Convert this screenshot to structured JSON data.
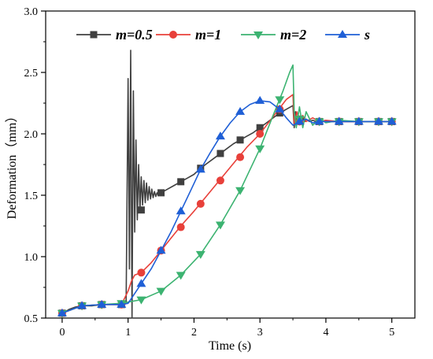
{
  "chart_data": {
    "type": "line",
    "xlabel": "Time (s)",
    "ylabel": "Deformation（mm）",
    "xlim": [
      -0.25,
      5.35
    ],
    "ylim": [
      0.5,
      3.0
    ],
    "x_ticks": [
      0,
      1,
      2,
      3,
      4,
      5
    ],
    "x_tick_labels": [
      "0",
      "1",
      "2",
      "3",
      "4",
      "5"
    ],
    "y_ticks": [
      0.5,
      1.0,
      1.5,
      2.0,
      2.5,
      3.0
    ],
    "y_tick_labels": [
      "0.5",
      "1.0",
      "1.5",
      "2.0",
      "2.5",
      "3.0"
    ],
    "legend_position": "top",
    "series": [
      {
        "name": "m=0.5",
        "color": "#404040",
        "marker": "square",
        "x": [
          0,
          0.1,
          0.2,
          0.3,
          0.45,
          0.6,
          0.75,
          0.9,
          0.97,
          1.0,
          1.02,
          1.04,
          1.06,
          1.08,
          1.1,
          1.12,
          1.14,
          1.16,
          1.18,
          1.2,
          1.22,
          1.24,
          1.26,
          1.28,
          1.3,
          1.32,
          1.34,
          1.36,
          1.38,
          1.4,
          1.42,
          1.44,
          1.46,
          1.48,
          1.5,
          1.6,
          1.7,
          1.8,
          1.9,
          2.0,
          2.1,
          2.2,
          2.3,
          2.4,
          2.5,
          2.6,
          2.7,
          2.8,
          2.9,
          3.0,
          3.1,
          3.2,
          3.3,
          3.4,
          3.5,
          3.52,
          3.54,
          3.56,
          3.58,
          3.6,
          3.62,
          3.64,
          3.66,
          3.68,
          3.7,
          3.75,
          3.8,
          3.85,
          3.9,
          4.0,
          4.2,
          4.5,
          4.8,
          5.0
        ],
        "y": [
          0.53,
          0.57,
          0.59,
          0.6,
          0.6,
          0.61,
          0.61,
          0.61,
          0.62,
          2.45,
          0.9,
          2.68,
          0.5,
          2.35,
          1.2,
          1.95,
          1.3,
          1.75,
          1.38,
          1.65,
          1.42,
          1.62,
          1.44,
          1.6,
          1.46,
          1.57,
          1.47,
          1.55,
          1.48,
          1.53,
          1.49,
          1.52,
          1.5,
          1.51,
          1.52,
          1.55,
          1.58,
          1.61,
          1.64,
          1.67,
          1.72,
          1.76,
          1.8,
          1.84,
          1.88,
          1.92,
          1.95,
          1.98,
          2.01,
          2.05,
          2.09,
          2.13,
          2.17,
          2.2,
          2.23,
          2.05,
          2.18,
          2.08,
          2.15,
          2.09,
          2.14,
          2.1,
          2.13,
          2.1,
          2.12,
          2.1,
          2.11,
          2.1,
          2.11,
          2.1,
          2.1,
          2.1,
          2.1,
          2.1
        ],
        "marker_x": [
          0,
          0.3,
          0.6,
          0.9,
          1.2,
          1.5,
          1.8,
          2.1,
          2.4,
          2.7,
          3.0,
          3.3,
          3.6,
          3.9,
          4.2,
          4.5,
          4.8,
          5.0
        ],
        "marker_y": [
          0.54,
          0.6,
          0.61,
          0.61,
          1.38,
          1.52,
          1.61,
          1.72,
          1.84,
          1.95,
          2.05,
          2.17,
          2.12,
          2.1,
          2.1,
          2.1,
          2.1,
          2.1
        ]
      },
      {
        "name": "m=1",
        "color": "#e8403a",
        "marker": "circle",
        "x": [
          0,
          0.3,
          0.6,
          0.9,
          1.0,
          1.05,
          1.1,
          1.2,
          1.35,
          1.5,
          1.65,
          1.8,
          2.0,
          2.2,
          2.4,
          2.6,
          2.8,
          3.0,
          3.2,
          3.4,
          3.5,
          3.52,
          3.56,
          3.6,
          3.65,
          3.7,
          3.8,
          3.9,
          4.0,
          4.2,
          4.5,
          4.8,
          5.0
        ],
        "y": [
          0.54,
          0.6,
          0.61,
          0.61,
          0.72,
          0.8,
          0.85,
          0.87,
          0.95,
          1.05,
          1.15,
          1.25,
          1.37,
          1.5,
          1.63,
          1.76,
          1.89,
          2.0,
          2.14,
          2.28,
          2.32,
          2.08,
          2.18,
          2.1,
          2.15,
          2.1,
          2.13,
          2.1,
          2.11,
          2.1,
          2.1,
          2.1,
          2.1
        ],
        "marker_x": [
          0,
          0.3,
          0.6,
          0.9,
          1.2,
          1.5,
          1.8,
          2.1,
          2.4,
          2.7,
          3.0,
          3.3,
          3.6,
          3.9,
          4.2,
          4.5,
          4.8,
          5.0
        ],
        "marker_y": [
          0.54,
          0.6,
          0.61,
          0.61,
          0.87,
          1.05,
          1.24,
          1.43,
          1.62,
          1.81,
          2.0,
          2.2,
          2.1,
          2.1,
          2.1,
          2.1,
          2.1,
          2.1
        ]
      },
      {
        "name": "m=2",
        "color": "#3cb371",
        "marker": "triangle-down",
        "x": [
          0,
          0.3,
          0.6,
          0.9,
          1.0,
          1.2,
          1.5,
          1.8,
          2.1,
          2.4,
          2.7,
          3.0,
          3.2,
          3.35,
          3.45,
          3.5,
          3.52,
          3.55,
          3.6,
          3.65,
          3.7,
          3.8,
          3.9,
          4.0,
          4.2,
          4.5,
          4.8,
          5.0
        ],
        "y": [
          0.54,
          0.6,
          0.61,
          0.62,
          0.63,
          0.65,
          0.72,
          0.85,
          1.02,
          1.26,
          1.54,
          1.88,
          2.15,
          2.35,
          2.5,
          2.56,
          2.18,
          2.05,
          2.22,
          2.05,
          2.18,
          2.07,
          2.13,
          2.09,
          2.11,
          2.1,
          2.1,
          2.1
        ],
        "marker_x": [
          0,
          0.3,
          0.6,
          0.9,
          1.2,
          1.5,
          1.8,
          2.1,
          2.4,
          2.7,
          3.0,
          3.3,
          3.6,
          3.9,
          4.2,
          4.5,
          4.8,
          5.0
        ],
        "marker_y": [
          0.54,
          0.6,
          0.61,
          0.62,
          0.65,
          0.72,
          0.85,
          1.02,
          1.26,
          1.54,
          1.88,
          2.28,
          2.12,
          2.1,
          2.1,
          2.1,
          2.1,
          2.1
        ]
      },
      {
        "name": "s",
        "color": "#1f5fd6",
        "marker": "triangle-up",
        "x": [
          0,
          0.3,
          0.6,
          0.9,
          1.0,
          1.1,
          1.2,
          1.35,
          1.5,
          1.65,
          1.8,
          1.95,
          2.1,
          2.25,
          2.4,
          2.55,
          2.7,
          2.85,
          3.0,
          3.15,
          3.3,
          3.4,
          3.5,
          3.6,
          3.7,
          3.8,
          3.9,
          4.0,
          4.2,
          4.5,
          4.8,
          5.0
        ],
        "y": [
          0.54,
          0.6,
          0.61,
          0.61,
          0.62,
          0.7,
          0.78,
          0.9,
          1.05,
          1.2,
          1.37,
          1.54,
          1.71,
          1.85,
          1.98,
          2.09,
          2.18,
          2.24,
          2.27,
          2.26,
          2.2,
          2.13,
          2.07,
          2.1,
          2.12,
          2.09,
          2.1,
          2.1,
          2.1,
          2.1,
          2.1,
          2.1
        ],
        "marker_x": [
          0,
          0.3,
          0.6,
          0.9,
          1.2,
          1.5,
          1.8,
          2.1,
          2.4,
          2.7,
          3.0,
          3.3,
          3.6,
          3.9,
          4.2,
          4.5,
          4.8,
          5.0
        ],
        "marker_y": [
          0.54,
          0.6,
          0.61,
          0.61,
          0.78,
          1.05,
          1.37,
          1.71,
          1.98,
          2.18,
          2.27,
          2.2,
          2.1,
          2.1,
          2.1,
          2.1,
          2.1,
          2.1
        ]
      }
    ]
  }
}
